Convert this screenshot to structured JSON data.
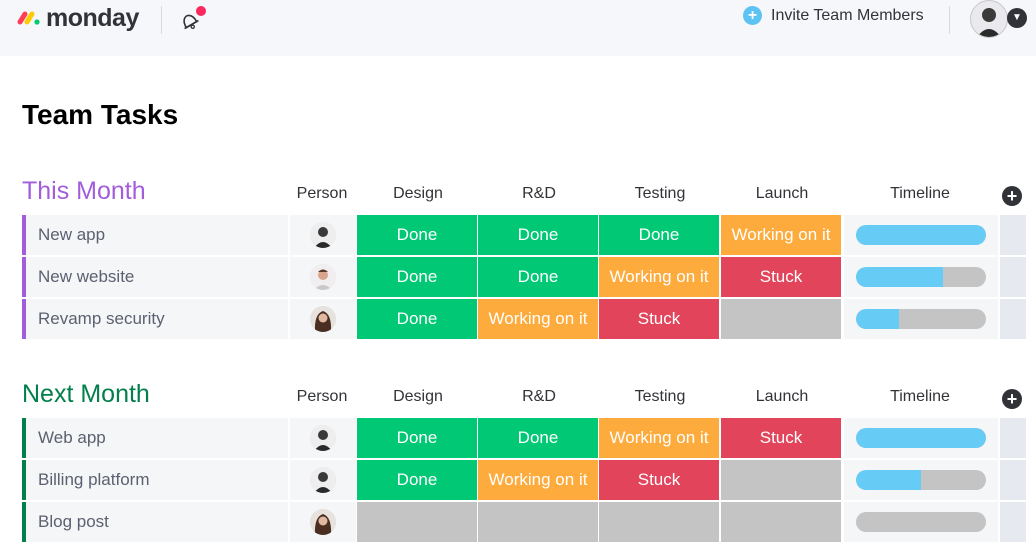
{
  "app": {
    "brand": "monday",
    "invite_label": "Invite Team Members"
  },
  "page": {
    "title": "Team Tasks"
  },
  "columns": [
    "Person",
    "Design",
    "R&D",
    "Testing",
    "Launch",
    "Timeline"
  ],
  "colors": {
    "Done": "#00c875",
    "Working on it": "#fdab3d",
    "Stuck": "#e2445c",
    "empty": "#c4c4c4",
    "this_month": "#a25ddc",
    "next_month": "#037f4c"
  },
  "groups": [
    {
      "title": "This Month",
      "rows": [
        {
          "name": "New app",
          "design": "Done",
          "rnd": "Done",
          "testing": "Done",
          "launch": "Working on it",
          "timeline_progress": 1.0
        },
        {
          "name": "New website",
          "design": "Done",
          "rnd": "Done",
          "testing": "Working on it",
          "launch": "Stuck",
          "timeline_progress": 0.67
        },
        {
          "name": "Revamp security",
          "design": "Done",
          "rnd": "Working on it",
          "testing": "Stuck",
          "launch": "",
          "timeline_progress": 0.33
        }
      ]
    },
    {
      "title": "Next Month",
      "rows": [
        {
          "name": "Web app",
          "design": "Done",
          "rnd": "Done",
          "testing": "Working on it",
          "launch": "Stuck",
          "timeline_progress": 1.0
        },
        {
          "name": "Billing platform",
          "design": "Done",
          "rnd": "Working on it",
          "testing": "Stuck",
          "launch": "",
          "timeline_progress": 0.5
        },
        {
          "name": "Blog post",
          "design": "",
          "rnd": "",
          "testing": "",
          "launch": "",
          "timeline_progress": 0.0
        }
      ]
    }
  ]
}
